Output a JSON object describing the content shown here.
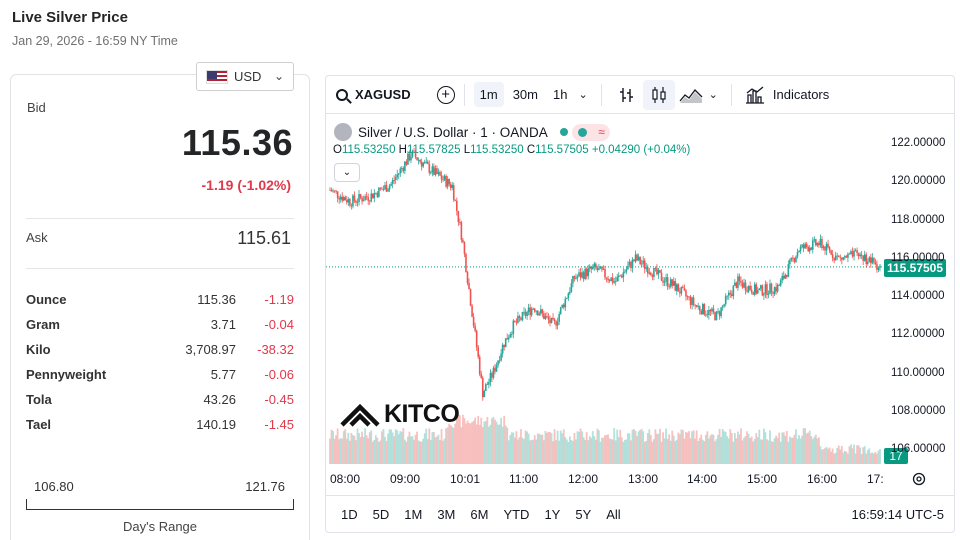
{
  "header": {
    "title": "Live Silver Price",
    "subtitle": "Jan 29, 2026 - 16:59 NY Time"
  },
  "currency": {
    "selected": "USD",
    "flag_icon": "us-flag-icon"
  },
  "price": {
    "bid_label": "Bid",
    "bid": "115.36",
    "change": "-1.19 (-1.02%)",
    "ask_label": "Ask",
    "ask": "115.61",
    "down_color": "#e0394b"
  },
  "units": [
    {
      "name": "Ounce",
      "price": "115.36",
      "change": "-1.19"
    },
    {
      "name": "Gram",
      "price": "3.71",
      "change": "-0.04"
    },
    {
      "name": "Kilo",
      "price": "3,708.97",
      "change": "-38.32"
    },
    {
      "name": "Pennyweight",
      "price": "5.77",
      "change": "-0.06"
    },
    {
      "name": "Tola",
      "price": "43.26",
      "change": "-0.45"
    },
    {
      "name": "Tael",
      "price": "140.19",
      "change": "-1.45"
    }
  ],
  "days_range": {
    "low": "106.80",
    "high": "121.76",
    "label": "Day's Range"
  },
  "toolbar": {
    "symbol": "XAGUSD",
    "intervals": [
      "1m",
      "30m",
      "1h"
    ],
    "active_interval": "1m",
    "indicators_label": "Indicators"
  },
  "legend": {
    "name": "Silver / U.S. Dollar · 1 · OANDA",
    "badge": "≈",
    "open_label": "O",
    "open": "115.53250",
    "high_label": "H",
    "high": "115.57825",
    "low_label": "L",
    "low": "115.53250",
    "close_label": "C",
    "close": "115.57505",
    "change": "+0.04290 (+0.04%)"
  },
  "brand": {
    "logo_text": "KITCO"
  },
  "chart_data": {
    "type": "line",
    "series": [
      {
        "x": [
          "08:00",
          "08:20",
          "08:40",
          "09:00",
          "09:20",
          "09:40",
          "10:00",
          "10:10",
          "10:20",
          "10:30",
          "10:40",
          "10:50",
          "11:00",
          "11:20",
          "11:40",
          "12:00",
          "12:20",
          "12:40",
          "13:00",
          "13:20",
          "13:40",
          "14:00",
          "14:20",
          "14:40",
          "15:00",
          "15:20",
          "15:40",
          "16:00",
          "16:20",
          "16:40",
          "17:00"
        ],
        "values": [
          119.6,
          119.0,
          119.3,
          119.9,
          121.5,
          120.6,
          119.8,
          117.0,
          113.0,
          109.0,
          110.0,
          111.5,
          112.5,
          113.5,
          112.5,
          115.0,
          115.5,
          114.8,
          116.0,
          115.2,
          114.5,
          113.5,
          113.0,
          114.8,
          114.3,
          114.5,
          116.5,
          116.8,
          116.0,
          116.2,
          115.58
        ]
      }
    ],
    "volume_tag": "17",
    "last_price_tag": "115.57505",
    "y_ticks": [
      "122.00000",
      "120.00000",
      "118.00000",
      "116.00000",
      "114.00000",
      "112.00000",
      "110.00000",
      "108.00000",
      "106.00000"
    ],
    "x_ticks": [
      "08:00",
      "09:00",
      "10:01",
      "11:00",
      "12:00",
      "13:00",
      "14:00",
      "15:00",
      "16:00",
      "17:"
    ],
    "ylim": [
      105.5,
      122.5
    ],
    "up_color": "#26a69a",
    "down_color": "#ef5350"
  },
  "ranges": [
    "1D",
    "5D",
    "1M",
    "3M",
    "6M",
    "YTD",
    "1Y",
    "5Y",
    "All"
  ],
  "clock": "16:59:14 UTC-5"
}
